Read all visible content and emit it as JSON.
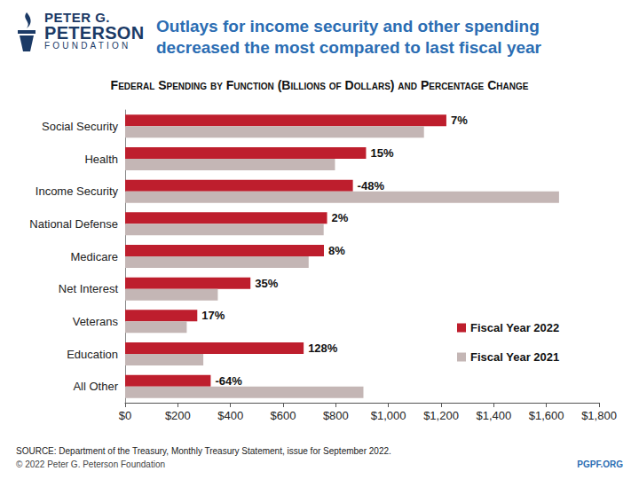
{
  "chart_data": {
    "type": "bar",
    "orientation": "horizontal",
    "title": "Outlays for income security and other spending decreased the most compared to last fiscal year",
    "subtitle": "Federal Spending by Function (Billions of Dollars) and Percentage Change",
    "categories": [
      "Social Security",
      "Health",
      "Income Security",
      "National Defense",
      "Medicare",
      "Net Interest",
      "Veterans",
      "Education",
      "All Other"
    ],
    "series": [
      {
        "name": "Fiscal Year 2022",
        "color": "#be1e2d",
        "values": [
          1220,
          915,
          865,
          767,
          755,
          476,
          274,
          678,
          325
        ],
        "change_labels": [
          "7%",
          "15%",
          "-48%",
          "2%",
          "8%",
          "35%",
          "17%",
          "128%",
          "-64%"
        ]
      },
      {
        "name": "Fiscal Year 2021",
        "color": "#c4b6b5",
        "values": [
          1135,
          797,
          1648,
          754,
          697,
          352,
          234,
          297,
          905
        ]
      }
    ],
    "xlim": [
      0,
      1800
    ],
    "xticks": [
      {
        "value": 0,
        "label": "$0"
      },
      {
        "value": 200,
        "label": "$200"
      },
      {
        "value": 400,
        "label": "$400"
      },
      {
        "value": 600,
        "label": "$600"
      },
      {
        "value": 800,
        "label": "$800"
      },
      {
        "value": 1000,
        "label": "$1,000"
      },
      {
        "value": 1200,
        "label": "$1,200"
      },
      {
        "value": 1400,
        "label": "$1,400"
      },
      {
        "value": 1600,
        "label": "$1,600"
      },
      {
        "value": 1800,
        "label": "$1,800"
      }
    ],
    "grid": false,
    "legend": "right",
    "data_labels": false,
    "source": "SOURCE: Department of the Treasury, Monthly Treasury Statement, issue for September 2022.",
    "copyright": "© 2022 Peter G. Peterson Foundation",
    "website": "PGPF.ORG",
    "logo": [
      "PETER G.",
      "PETERSON",
      "FOUNDATION"
    ]
  }
}
